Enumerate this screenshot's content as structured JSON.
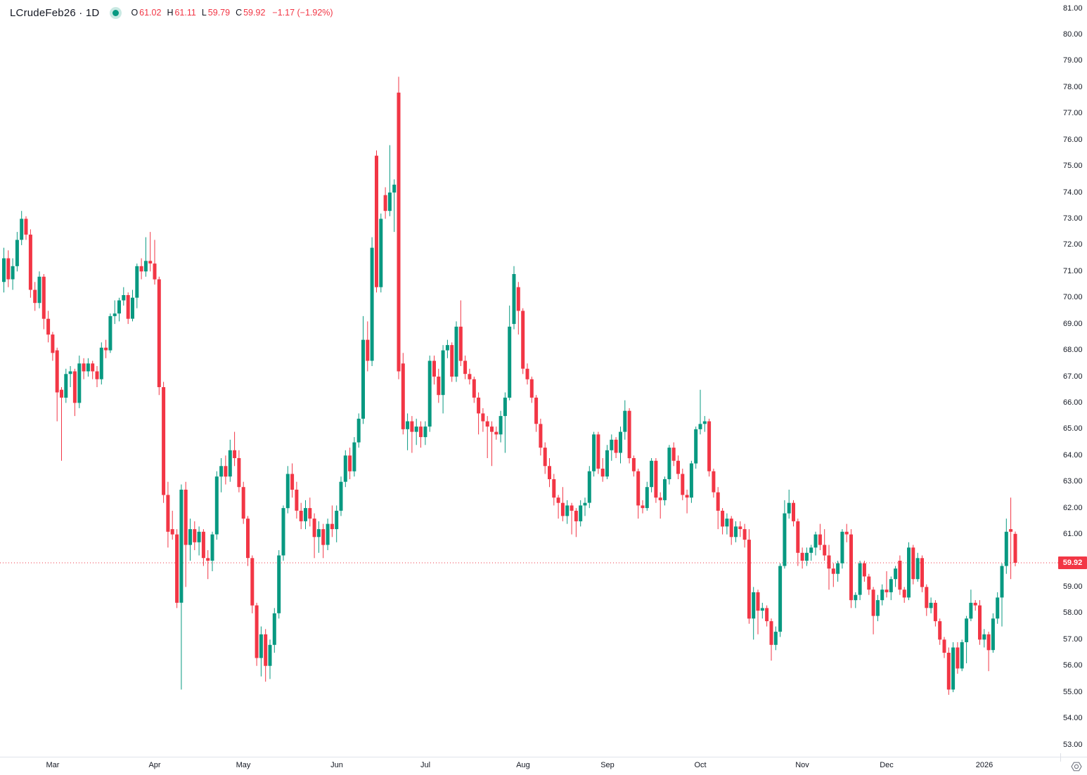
{
  "legend": {
    "symbol": "LCrudeFeb26 · 1D",
    "o_label": "O",
    "o_value": "61.02",
    "h_label": "H",
    "h_value": "61.11",
    "l_label": "L",
    "l_value": "59.79",
    "c_label": "C",
    "c_value": "59.92",
    "change": "−1.17 (−1.92%)",
    "status_dot_color": "#089981"
  },
  "colors": {
    "up": "#089981",
    "down": "#f23645",
    "text": "#131722",
    "axis_separator": "#e0e3eb",
    "last_price_line": "#f23645",
    "label_bg": "#f23645",
    "label_text": "#ffffff",
    "icon": "#787b86",
    "background": "#ffffff"
  },
  "price_axis": {
    "last_price_label": "59.92",
    "ticks": [
      "81.00",
      "80.00",
      "79.00",
      "78.00",
      "77.00",
      "76.00",
      "75.00",
      "74.00",
      "73.00",
      "72.00",
      "71.00",
      "70.00",
      "69.00",
      "68.00",
      "67.00",
      "66.00",
      "65.00",
      "64.00",
      "63.00",
      "62.00",
      "61.00",
      "60.00",
      "59.00",
      "58.00",
      "57.00",
      "56.00",
      "55.00",
      "54.00",
      "53.00"
    ]
  },
  "time_axis": {
    "labels": [
      {
        "text": "Mar",
        "index": 11
      },
      {
        "text": "Apr",
        "index": 34
      },
      {
        "text": "May",
        "index": 54
      },
      {
        "text": "Jun",
        "index": 75
      },
      {
        "text": "Jul",
        "index": 95
      },
      {
        "text": "Aug",
        "index": 117
      },
      {
        "text": "Sep",
        "index": 136
      },
      {
        "text": "Oct",
        "index": 157
      },
      {
        "text": "Nov",
        "index": 180
      },
      {
        "text": "Dec",
        "index": 199
      },
      {
        "text": "2026",
        "index": 221
      }
    ]
  },
  "chart_data": {
    "type": "candlestick",
    "title": "LCrudeFeb26 · 1D",
    "symbol": "LCrudeFeb26",
    "timeframe": "1D",
    "y_axis": {
      "min": 53,
      "max": 81,
      "tick_step": 1,
      "grid": false
    },
    "x_axis": {
      "start_month": "Feb 2025",
      "end_month": "Jan 2026"
    },
    "last_close": 59.92,
    "last_change": -1.17,
    "last_change_pct": -1.92,
    "month_start_indices": {
      "Mar": 11,
      "Apr": 34,
      "May": 54,
      "Jun": 75,
      "Jul": 95,
      "Aug": 117,
      "Sep": 136,
      "Oct": 157,
      "Nov": 180,
      "Dec": 199,
      "2026": 221
    },
    "ohlc": [
      [
        70.6,
        71.9,
        70.2,
        71.5
      ],
      [
        71.5,
        71.8,
        70.4,
        70.7
      ],
      [
        70.7,
        71.5,
        70.3,
        71.2
      ],
      [
        71.2,
        72.5,
        71.0,
        72.2
      ],
      [
        72.2,
        73.3,
        72.0,
        73.0
      ],
      [
        73.0,
        73.1,
        72.2,
        72.4
      ],
      [
        72.4,
        72.6,
        70.0,
        70.3
      ],
      [
        70.3,
        70.6,
        69.5,
        69.8
      ],
      [
        69.8,
        71.0,
        69.6,
        70.8
      ],
      [
        70.8,
        70.9,
        68.8,
        69.2
      ],
      [
        69.2,
        69.5,
        68.3,
        68.6
      ],
      [
        68.6,
        68.7,
        67.6,
        67.9
      ],
      [
        68.0,
        68.1,
        65.3,
        66.4
      ],
      [
        66.5,
        66.6,
        63.8,
        66.2
      ],
      [
        66.2,
        67.3,
        66.0,
        67.1
      ],
      [
        67.1,
        67.4,
        66.6,
        67.2
      ],
      [
        67.2,
        67.3,
        65.5,
        66.0
      ],
      [
        66.0,
        67.8,
        65.8,
        67.5
      ],
      [
        67.5,
        67.7,
        66.9,
        67.2
      ],
      [
        67.2,
        67.7,
        67.0,
        67.5
      ],
      [
        67.5,
        67.6,
        66.9,
        67.2
      ],
      [
        67.2,
        67.4,
        66.6,
        66.9
      ],
      [
        66.9,
        68.3,
        66.7,
        68.1
      ],
      [
        68.1,
        68.4,
        67.7,
        68.0
      ],
      [
        68.0,
        69.4,
        67.9,
        69.3
      ],
      [
        69.3,
        69.9,
        69.0,
        69.4
      ],
      [
        69.4,
        70.0,
        69.1,
        69.9
      ],
      [
        69.9,
        70.4,
        69.7,
        70.1
      ],
      [
        70.1,
        70.2,
        69.0,
        69.2
      ],
      [
        69.2,
        70.3,
        69.1,
        70.0
      ],
      [
        70.0,
        71.3,
        69.6,
        71.2
      ],
      [
        71.2,
        71.5,
        70.7,
        71.0
      ],
      [
        71.0,
        72.3,
        70.8,
        71.4
      ],
      [
        71.4,
        72.5,
        71.0,
        71.3
      ],
      [
        71.3,
        72.2,
        70.5,
        70.7
      ],
      [
        70.7,
        70.8,
        66.3,
        66.6
      ],
      [
        66.6,
        66.8,
        62.2,
        62.5
      ],
      [
        62.5,
        63.0,
        60.5,
        61.1
      ],
      [
        61.2,
        61.9,
        60.8,
        61.0
      ],
      [
        61.0,
        61.2,
        58.2,
        58.4
      ],
      [
        58.4,
        62.9,
        55.1,
        62.7
      ],
      [
        62.7,
        63.0,
        59.0,
        60.6
      ],
      [
        60.6,
        61.6,
        60.0,
        61.2
      ],
      [
        61.2,
        61.5,
        60.4,
        60.7
      ],
      [
        60.7,
        61.3,
        60.2,
        61.1
      ],
      [
        61.1,
        61.2,
        59.8,
        60.1
      ],
      [
        60.1,
        60.4,
        59.3,
        60.0
      ],
      [
        60.0,
        61.1,
        59.6,
        61.0
      ],
      [
        61.0,
        63.4,
        60.8,
        63.2
      ],
      [
        63.2,
        63.9,
        62.6,
        63.6
      ],
      [
        63.6,
        64.0,
        62.9,
        63.2
      ],
      [
        63.2,
        64.6,
        63.0,
        64.2
      ],
      [
        64.2,
        64.9,
        63.6,
        63.9
      ],
      [
        63.9,
        64.2,
        62.6,
        62.8
      ],
      [
        62.8,
        63.0,
        61.4,
        61.6
      ],
      [
        61.6,
        61.7,
        59.8,
        60.1
      ],
      [
        60.1,
        60.2,
        58.0,
        58.3
      ],
      [
        58.3,
        58.4,
        56.0,
        56.3
      ],
      [
        56.3,
        57.5,
        55.6,
        57.2
      ],
      [
        57.2,
        57.4,
        55.4,
        56.0
      ],
      [
        56.0,
        57.0,
        55.5,
        56.8
      ],
      [
        56.8,
        58.2,
        56.5,
        58.0
      ],
      [
        58.0,
        60.4,
        57.8,
        60.2
      ],
      [
        60.2,
        62.1,
        60.0,
        62.0
      ],
      [
        62.0,
        63.6,
        61.8,
        63.3
      ],
      [
        63.3,
        63.7,
        62.4,
        62.7
      ],
      [
        62.7,
        63.0,
        61.6,
        61.9
      ],
      [
        61.9,
        62.2,
        61.2,
        61.5
      ],
      [
        61.5,
        62.3,
        61.2,
        62.0
      ],
      [
        62.0,
        62.4,
        61.3,
        61.6
      ],
      [
        61.6,
        61.8,
        60.1,
        60.9
      ],
      [
        60.9,
        61.5,
        60.3,
        61.2
      ],
      [
        61.2,
        61.4,
        60.1,
        60.6
      ],
      [
        60.6,
        61.6,
        60.4,
        61.4
      ],
      [
        61.4,
        62.1,
        60.9,
        61.2
      ],
      [
        61.2,
        62.1,
        60.7,
        61.9
      ],
      [
        61.9,
        63.2,
        61.7,
        63.0
      ],
      [
        63.0,
        64.2,
        62.8,
        64.0
      ],
      [
        64.0,
        64.3,
        63.1,
        63.4
      ],
      [
        63.4,
        64.7,
        63.2,
        64.5
      ],
      [
        64.5,
        65.6,
        64.3,
        65.4
      ],
      [
        65.4,
        69.3,
        65.2,
        68.4
      ],
      [
        68.4,
        69.1,
        67.2,
        67.6
      ],
      [
        67.6,
        72.3,
        67.4,
        71.9
      ],
      [
        75.4,
        75.6,
        70.2,
        70.4
      ],
      [
        70.4,
        73.2,
        70.2,
        73.0
      ],
      [
        73.9,
        74.2,
        73.0,
        73.3
      ],
      [
        73.3,
        75.8,
        73.1,
        74.0
      ],
      [
        74.0,
        74.5,
        72.5,
        74.3
      ],
      [
        77.8,
        78.4,
        66.9,
        67.2
      ],
      [
        67.5,
        67.9,
        64.8,
        65.0
      ],
      [
        65.0,
        65.6,
        64.2,
        65.3
      ],
      [
        65.3,
        65.5,
        64.1,
        64.9
      ],
      [
        64.9,
        65.4,
        64.4,
        65.1
      ],
      [
        65.1,
        65.3,
        64.3,
        64.7
      ],
      [
        64.7,
        65.3,
        64.4,
        65.1
      ],
      [
        65.1,
        67.8,
        64.9,
        67.6
      ],
      [
        67.6,
        67.8,
        66.7,
        67.0
      ],
      [
        67.0,
        67.3,
        66.0,
        66.3
      ],
      [
        66.3,
        68.2,
        65.6,
        68.0
      ],
      [
        68.0,
        68.4,
        67.7,
        68.2
      ],
      [
        68.2,
        68.3,
        66.8,
        67.0
      ],
      [
        67.0,
        69.1,
        66.8,
        68.9
      ],
      [
        68.9,
        69.9,
        67.4,
        67.6
      ],
      [
        67.6,
        67.8,
        66.9,
        67.1
      ],
      [
        67.1,
        67.3,
        66.7,
        66.9
      ],
      [
        66.9,
        67.0,
        66.0,
        66.2
      ],
      [
        66.2,
        66.4,
        64.8,
        65.6
      ],
      [
        65.6,
        65.8,
        64.9,
        65.3
      ],
      [
        65.3,
        65.5,
        63.9,
        65.1
      ],
      [
        65.1,
        65.3,
        63.6,
        64.9
      ],
      [
        64.9,
        65.1,
        64.6,
        64.8
      ],
      [
        64.8,
        65.7,
        64.5,
        65.5
      ],
      [
        65.5,
        66.4,
        64.1,
        66.2
      ],
      [
        66.2,
        69.7,
        66.1,
        68.9
      ],
      [
        69.0,
        71.2,
        68.8,
        70.9
      ],
      [
        70.4,
        70.6,
        68.6,
        69.5
      ],
      [
        69.5,
        69.6,
        67.1,
        67.3
      ],
      [
        67.3,
        67.5,
        66.7,
        66.9
      ],
      [
        66.9,
        67.0,
        66.0,
        66.2
      ],
      [
        66.2,
        66.3,
        64.9,
        65.2
      ],
      [
        65.2,
        65.4,
        64.0,
        64.3
      ],
      [
        64.3,
        64.5,
        63.3,
        63.6
      ],
      [
        63.6,
        63.9,
        62.8,
        63.1
      ],
      [
        63.1,
        63.3,
        62.1,
        62.4
      ],
      [
        62.4,
        62.5,
        61.6,
        62.2
      ],
      [
        62.2,
        62.8,
        61.5,
        61.7
      ],
      [
        61.7,
        62.3,
        61.4,
        62.1
      ],
      [
        62.1,
        62.2,
        61.0,
        61.9
      ],
      [
        61.9,
        62.0,
        60.9,
        61.5
      ],
      [
        61.5,
        62.3,
        61.3,
        62.1
      ],
      [
        62.1,
        62.4,
        61.7,
        62.2
      ],
      [
        62.2,
        63.6,
        62.0,
        63.4
      ],
      [
        63.4,
        64.9,
        63.2,
        64.8
      ],
      [
        64.8,
        64.9,
        63.3,
        63.5
      ],
      [
        63.5,
        63.9,
        63.0,
        63.2
      ],
      [
        63.2,
        64.4,
        63.1,
        64.2
      ],
      [
        64.2,
        64.8,
        63.8,
        64.6
      ],
      [
        64.6,
        64.7,
        63.9,
        64.1
      ],
      [
        64.1,
        65.1,
        63.7,
        64.9
      ],
      [
        64.9,
        66.1,
        64.6,
        65.7
      ],
      [
        65.7,
        65.8,
        63.7,
        63.9
      ],
      [
        63.9,
        64.0,
        63.2,
        63.4
      ],
      [
        63.4,
        63.5,
        61.6,
        62.1
      ],
      [
        62.1,
        62.3,
        61.8,
        62.0
      ],
      [
        62.0,
        63.0,
        61.9,
        62.8
      ],
      [
        62.8,
        63.9,
        62.6,
        63.8
      ],
      [
        63.8,
        63.9,
        62.2,
        62.4
      ],
      [
        62.4,
        62.6,
        61.6,
        62.3
      ],
      [
        62.3,
        63.2,
        62.1,
        63.1
      ],
      [
        63.1,
        64.4,
        62.9,
        64.3
      ],
      [
        64.3,
        64.5,
        63.6,
        63.8
      ],
      [
        63.8,
        64.0,
        63.1,
        63.3
      ],
      [
        63.3,
        63.5,
        62.3,
        62.5
      ],
      [
        62.5,
        62.7,
        61.8,
        62.4
      ],
      [
        62.4,
        63.8,
        62.2,
        63.7
      ],
      [
        63.7,
        65.1,
        63.5,
        65.0
      ],
      [
        65.0,
        66.5,
        64.8,
        65.2
      ],
      [
        65.2,
        65.5,
        64.9,
        65.3
      ],
      [
        65.3,
        65.4,
        63.2,
        63.4
      ],
      [
        63.4,
        63.5,
        62.4,
        62.6
      ],
      [
        62.6,
        62.8,
        61.2,
        61.9
      ],
      [
        61.9,
        62.0,
        61.0,
        61.3
      ],
      [
        61.3,
        61.8,
        61.0,
        61.6
      ],
      [
        61.6,
        61.7,
        60.6,
        60.9
      ],
      [
        60.9,
        61.5,
        60.7,
        61.3
      ],
      [
        61.3,
        61.5,
        60.9,
        61.2
      ],
      [
        61.2,
        61.4,
        60.5,
        60.8
      ],
      [
        60.8,
        61.2,
        57.6,
        57.8
      ],
      [
        57.8,
        59.0,
        57.0,
        58.8
      ],
      [
        58.8,
        58.9,
        57.2,
        58.1
      ],
      [
        58.1,
        58.4,
        57.8,
        58.2
      ],
      [
        58.2,
        58.3,
        57.5,
        57.7
      ],
      [
        57.7,
        57.8,
        56.2,
        56.8
      ],
      [
        56.8,
        57.5,
        56.6,
        57.3
      ],
      [
        57.3,
        59.9,
        57.1,
        59.8
      ],
      [
        59.8,
        62.3,
        59.7,
        61.8
      ],
      [
        61.8,
        62.7,
        61.6,
        62.2
      ],
      [
        62.2,
        62.3,
        61.3,
        61.5
      ],
      [
        61.5,
        61.6,
        59.8,
        60.3
      ],
      [
        60.3,
        60.5,
        59.7,
        60.0
      ],
      [
        60.0,
        60.5,
        59.8,
        60.3
      ],
      [
        60.3,
        60.6,
        60.0,
        60.5
      ],
      [
        60.5,
        61.1,
        60.2,
        61.0
      ],
      [
        61.0,
        61.4,
        60.4,
        60.6
      ],
      [
        60.6,
        61.2,
        60.0,
        60.2
      ],
      [
        60.2,
        60.6,
        58.9,
        59.7
      ],
      [
        59.7,
        59.9,
        59.0,
        59.5
      ],
      [
        59.5,
        60.0,
        59.2,
        59.9
      ],
      [
        59.9,
        61.2,
        59.7,
        61.1
      ],
      [
        61.1,
        61.4,
        60.7,
        61.0
      ],
      [
        61.0,
        61.2,
        58.2,
        58.5
      ],
      [
        58.5,
        58.8,
        58.2,
        58.7
      ],
      [
        58.7,
        60.0,
        58.5,
        59.9
      ],
      [
        59.9,
        60.0,
        59.2,
        59.4
      ],
      [
        59.4,
        59.5,
        58.7,
        58.9
      ],
      [
        58.9,
        59.0,
        57.2,
        57.9
      ],
      [
        57.9,
        58.7,
        57.7,
        58.5
      ],
      [
        58.5,
        59.1,
        58.3,
        58.9
      ],
      [
        58.9,
        59.6,
        58.6,
        58.8
      ],
      [
        58.8,
        59.4,
        58.5,
        59.3
      ],
      [
        59.3,
        59.8,
        59.0,
        59.7
      ],
      [
        60.0,
        60.2,
        58.7,
        58.9
      ],
      [
        58.9,
        59.0,
        58.4,
        58.6
      ],
      [
        58.6,
        60.7,
        58.5,
        60.5
      ],
      [
        60.5,
        60.6,
        59.1,
        59.3
      ],
      [
        59.3,
        60.3,
        59.2,
        60.1
      ],
      [
        60.1,
        60.2,
        58.8,
        59.0
      ],
      [
        59.0,
        59.1,
        57.9,
        58.2
      ],
      [
        58.2,
        58.6,
        58.0,
        58.4
      ],
      [
        58.4,
        58.5,
        57.5,
        57.7
      ],
      [
        57.7,
        57.8,
        56.8,
        57.0
      ],
      [
        57.0,
        57.1,
        56.3,
        56.5
      ],
      [
        56.5,
        56.7,
        54.9,
        55.1
      ],
      [
        55.1,
        56.9,
        55.0,
        56.7
      ],
      [
        56.7,
        56.9,
        55.7,
        55.9
      ],
      [
        55.9,
        57.0,
        55.8,
        56.9
      ],
      [
        56.9,
        57.9,
        56.1,
        57.8
      ],
      [
        57.8,
        58.9,
        57.7,
        58.4
      ],
      [
        58.4,
        58.5,
        58.1,
        58.3
      ],
      [
        58.3,
        58.5,
        56.8,
        57.0
      ],
      [
        57.0,
        57.4,
        56.7,
        57.2
      ],
      [
        57.2,
        57.3,
        55.8,
        56.6
      ],
      [
        56.6,
        58.0,
        56.5,
        57.8
      ],
      [
        57.8,
        58.8,
        57.6,
        58.6
      ],
      [
        58.6,
        59.9,
        57.5,
        59.8
      ],
      [
        59.8,
        61.6,
        59.5,
        61.1
      ],
      [
        61.2,
        62.4,
        59.3,
        61.1
      ],
      [
        61.02,
        61.11,
        59.79,
        59.92
      ]
    ]
  }
}
